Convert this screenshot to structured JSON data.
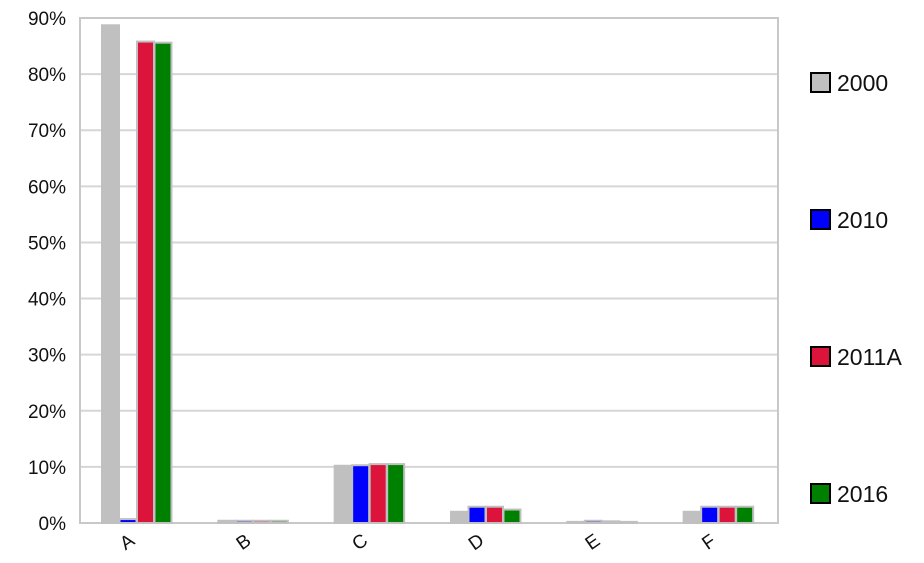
{
  "chart_data": {
    "type": "bar",
    "title": "",
    "xlabel": "",
    "ylabel": "",
    "ylim": [
      0,
      90
    ],
    "ytick_step": 10,
    "ytick_suffix": "%",
    "grid": true,
    "legend_position": "right",
    "categories": [
      "A",
      "B",
      "C",
      "D",
      "E",
      "F"
    ],
    "series": [
      {
        "name": "2000",
        "color": "#c0c0c0",
        "values": [
          88.7,
          0.4,
          10.2,
          2.0,
          0.2,
          2.0
        ]
      },
      {
        "name": "2010",
        "color": "#0000ff",
        "values": [
          0.7,
          0.4,
          10.3,
          2.9,
          0.4,
          2.9
        ]
      },
      {
        "name": "2011A",
        "color": "#dc143c",
        "values": [
          85.8,
          0.4,
          10.5,
          2.9,
          0.3,
          2.9
        ]
      },
      {
        "name": "2016",
        "color": "#008000",
        "values": [
          85.6,
          0.4,
          10.5,
          2.4,
          0.2,
          2.9
        ]
      }
    ]
  }
}
